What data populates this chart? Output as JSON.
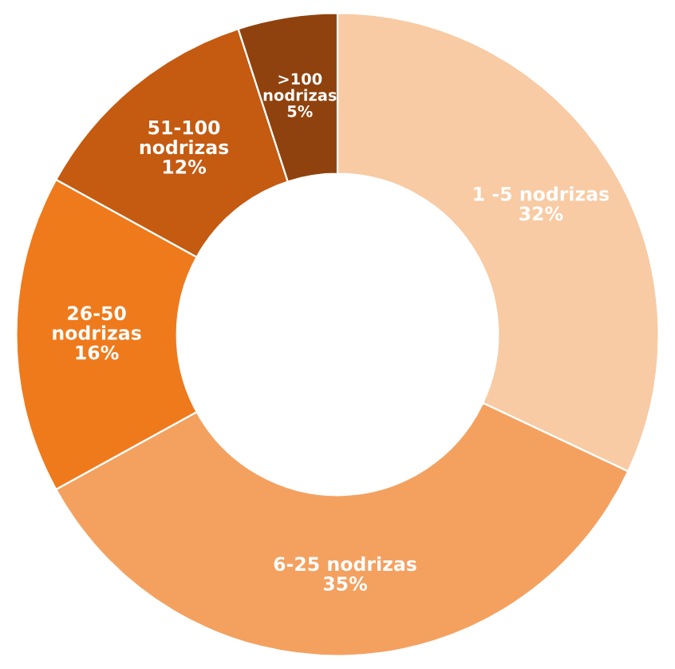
{
  "chart_data": {
    "type": "donut",
    "categories": [
      "1 -5 nodrizas",
      "6-25 nodrizas",
      "26-50\nnodrizas",
      "51-100\nnodrizas",
      ">100\nnodrizas"
    ],
    "values": [
      32,
      35,
      16,
      12,
      5
    ],
    "colors": [
      "#f8cba4",
      "#f4a160",
      "#ef7a1c",
      "#c55a11",
      "#8f420e"
    ],
    "value_labels": [
      "32%",
      "35%",
      "16%",
      "12%",
      "5%"
    ],
    "legend": false
  }
}
